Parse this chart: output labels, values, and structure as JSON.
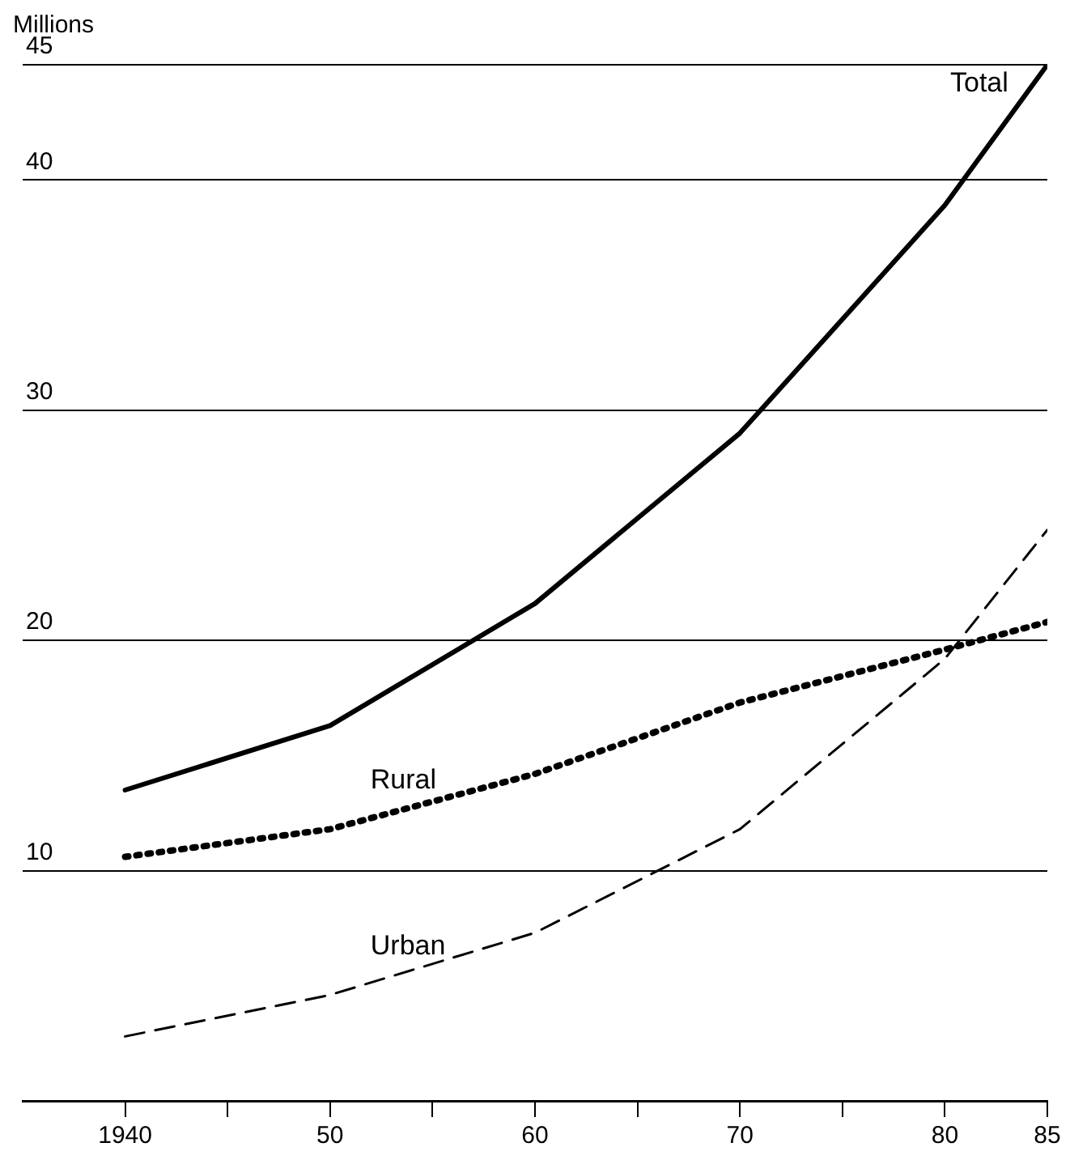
{
  "chart_data": {
    "type": "line",
    "ylabel": "Millions",
    "x": [
      1940,
      1950,
      1960,
      1970,
      1980,
      1985
    ],
    "series": [
      {
        "name": "Total",
        "color": "#000000",
        "line_style": "solid",
        "values": [
          13.5,
          16.3,
          21.6,
          29.0,
          38.9,
          45.0
        ]
      },
      {
        "name": "Rural",
        "color": "#000000",
        "line_style": "dotted",
        "values": [
          10.6,
          11.8,
          14.2,
          17.3,
          19.6,
          20.8
        ]
      },
      {
        "name": "Urban",
        "color": "#000000",
        "line_style": "dashed",
        "values": [
          2.8,
          4.6,
          7.3,
          11.8,
          19.2,
          24.8
        ]
      }
    ],
    "xlim": [
      1935,
      1985
    ],
    "xticks": [
      {
        "value": 1940,
        "label": "1940"
      },
      {
        "value": 1945,
        "label": null
      },
      {
        "value": 1950,
        "label": "50"
      },
      {
        "value": 1955,
        "label": null
      },
      {
        "value": 1960,
        "label": "60"
      },
      {
        "value": 1965,
        "label": null
      },
      {
        "value": 1970,
        "label": "70"
      },
      {
        "value": 1975,
        "label": null
      },
      {
        "value": 1980,
        "label": "80"
      },
      {
        "value": 1985,
        "label": "85"
      }
    ],
    "ylim": [
      0,
      45
    ],
    "yticks": [
      10,
      20,
      30,
      40,
      45
    ],
    "grid": "y",
    "legend": false,
    "marker": "none"
  }
}
